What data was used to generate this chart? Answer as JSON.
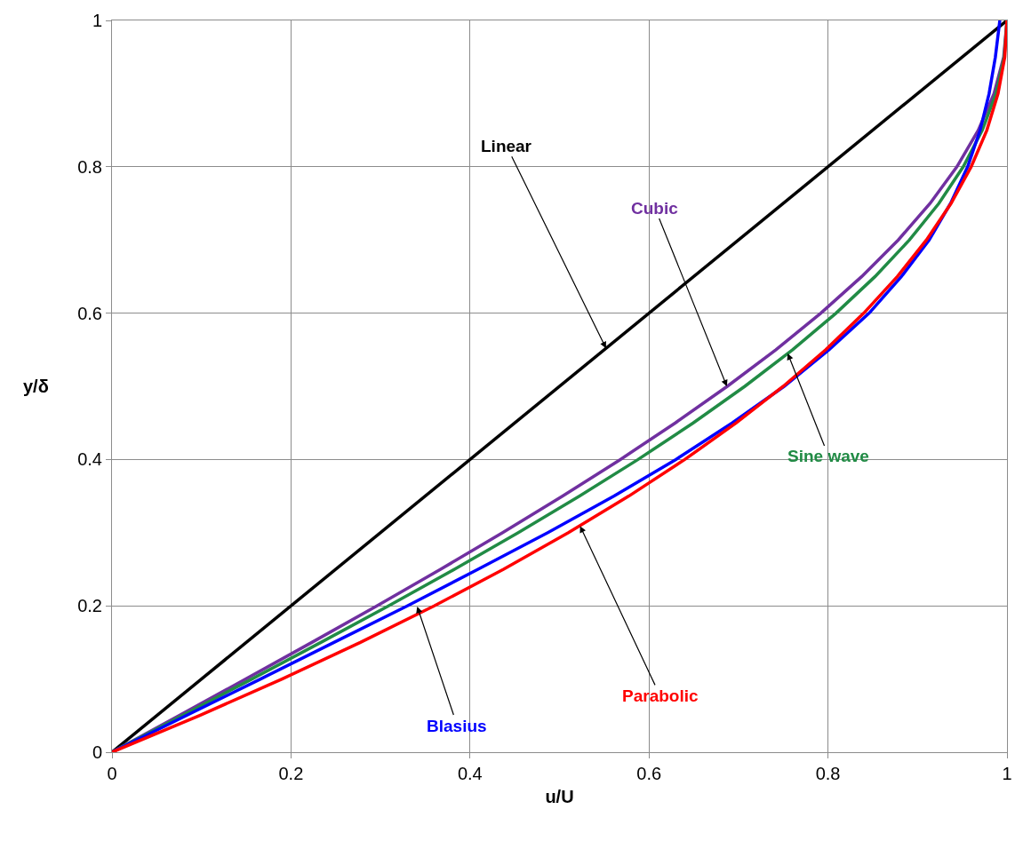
{
  "chart_data": {
    "type": "line",
    "xlabel": "u/U",
    "ylabel": "y/δ",
    "xlim": [
      0,
      1
    ],
    "ylim": [
      0,
      1
    ],
    "xticks": [
      0,
      0.2,
      0.4,
      0.6,
      0.8,
      1
    ],
    "yticks": [
      0,
      0.2,
      0.4,
      0.6,
      0.8,
      1
    ],
    "grid": true,
    "legend": false,
    "marker": "none",
    "line_style": "solid",
    "series": [
      {
        "color": "#000000",
        "x": [
          0,
          1
        ],
        "values": [
          0,
          1
        ]
      },
      {
        "color": "#7030a0",
        "x": [
          0,
          0.0749,
          0.1495,
          0.2233,
          0.296,
          0.3672,
          0.4365,
          0.5036,
          0.568,
          0.6294,
          0.6875,
          0.7418,
          0.792,
          0.8377,
          0.8785,
          0.9141,
          0.944,
          0.9679,
          0.9855,
          0.9963,
          1
        ],
        "values": [
          0,
          0.05,
          0.1,
          0.15,
          0.2,
          0.25,
          0.3,
          0.35,
          0.4,
          0.45,
          0.5,
          0.55,
          0.6,
          0.65,
          0.7,
          0.75,
          0.8,
          0.85,
          0.9,
          0.95,
          1
        ]
      },
      {
        "color": "#218b45",
        "x": [
          0,
          0.0785,
          0.1564,
          0.2334,
          0.309,
          0.3827,
          0.454,
          0.5225,
          0.5878,
          0.6494,
          0.7071,
          0.7604,
          0.809,
          0.8526,
          0.891,
          0.9239,
          0.9511,
          0.9724,
          0.9877,
          0.9969,
          1
        ],
        "values": [
          0,
          0.05,
          0.1,
          0.15,
          0.2,
          0.25,
          0.3,
          0.35,
          0.4,
          0.45,
          0.5,
          0.55,
          0.6,
          0.65,
          0.7,
          0.75,
          0.8,
          0.85,
          0.9,
          0.95,
          1
        ]
      },
      {
        "color": "#0000ff",
        "x": [
          0,
          0.083,
          0.166,
          0.248,
          0.33,
          0.409,
          0.487,
          0.561,
          0.63,
          0.693,
          0.751,
          0.801,
          0.846,
          0.882,
          0.913,
          0.937,
          0.956,
          0.97,
          0.98,
          0.987,
          0.992
        ],
        "values": [
          0,
          0.05,
          0.1,
          0.15,
          0.2,
          0.25,
          0.3,
          0.35,
          0.4,
          0.45,
          0.5,
          0.55,
          0.6,
          0.65,
          0.7,
          0.75,
          0.8,
          0.85,
          0.9,
          0.95,
          1
        ]
      },
      {
        "color": "#ff0000",
        "x": [
          0,
          0.0975,
          0.19,
          0.2775,
          0.36,
          0.4375,
          0.51,
          0.5775,
          0.64,
          0.6975,
          0.75,
          0.7975,
          0.84,
          0.8775,
          0.91,
          0.9375,
          0.96,
          0.9775,
          0.99,
          0.9975,
          1
        ],
        "values": [
          0,
          0.05,
          0.1,
          0.15,
          0.2,
          0.25,
          0.3,
          0.35,
          0.4,
          0.45,
          0.5,
          0.55,
          0.6,
          0.65,
          0.7,
          0.75,
          0.8,
          0.85,
          0.9,
          0.95,
          1
        ]
      }
    ],
    "annotations": [
      {
        "text": "Linear",
        "x": 0.552,
        "y": 0.552
      },
      {
        "text": "Cubic",
        "x": 0.687,
        "y": 0.5
      },
      {
        "text": "Sine wave",
        "x": 0.755,
        "y": 0.545
      },
      {
        "text": "Blasius",
        "x": 0.341,
        "y": 0.199
      },
      {
        "text": "Parabolic",
        "x": 0.523,
        "y": 0.309
      }
    ]
  }
}
